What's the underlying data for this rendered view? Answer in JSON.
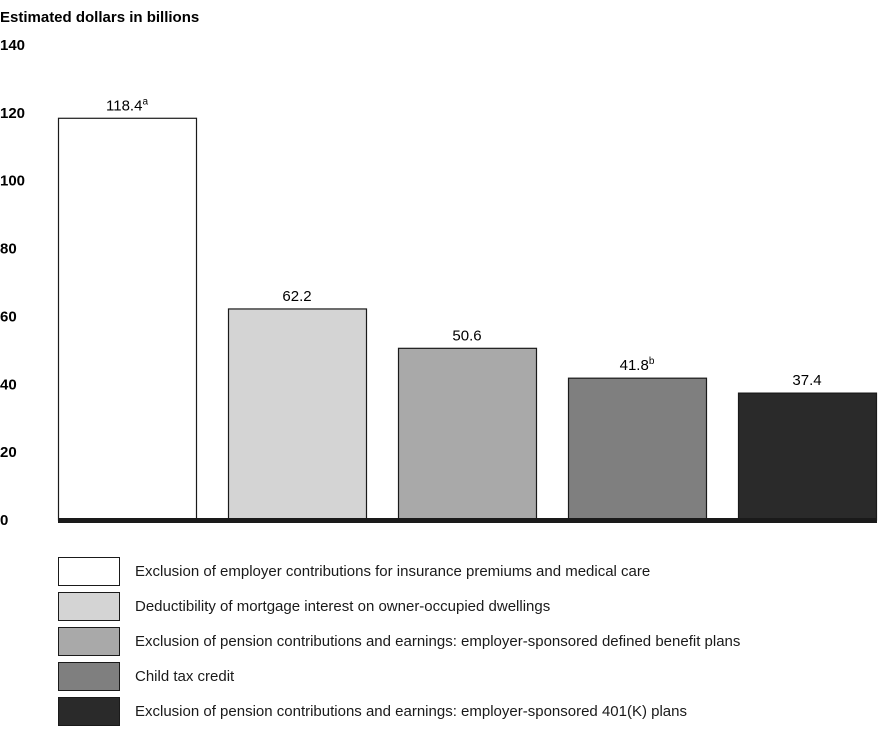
{
  "chart_data": {
    "type": "bar",
    "ylabel": "Estimated dollars in billions",
    "ylim": [
      0,
      140
    ],
    "yticks": [
      0,
      20,
      40,
      60,
      80,
      100,
      120,
      140
    ],
    "grid": false,
    "legend_placement": "bottom",
    "categories": [
      "Exclusion of employer contributions for insurance premiums and medical care",
      "Deductibility of mortgage interest on owner-occupied dwellings",
      "Exclusion of pension contributions and earnings: employer-sponsored defined benefit plans",
      "Child tax credit",
      "Exclusion of pension contributions and earnings: employer-sponsored 401(K) plans"
    ],
    "values": [
      118.4,
      62.2,
      50.6,
      41.8,
      37.4
    ],
    "data_labels": [
      "118.4",
      "62.2",
      "50.6",
      "41.8",
      "37.4"
    ],
    "footnote_marks": [
      "a",
      "",
      "",
      "b",
      ""
    ],
    "colors": [
      "#ffffff",
      "#d4d4d4",
      "#a9a9a9",
      "#7f7f7f",
      "#2a2a2a"
    ],
    "axis_color": "#1a1a1a"
  }
}
